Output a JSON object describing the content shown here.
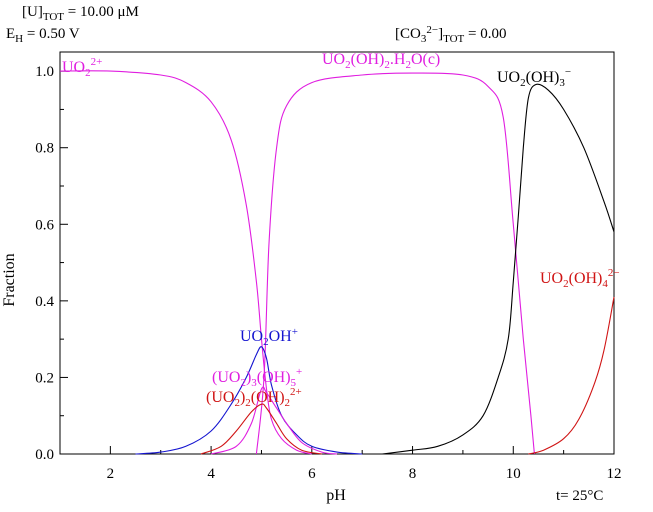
{
  "header": {
    "u_tot": "[U]TOT = 10.00 μM",
    "eh": "EH = 0.50 V",
    "co3_tot": "[CO32−]TOT = 0.00"
  },
  "footer": {
    "temperature": "t= 25°C"
  },
  "chart_data": {
    "type": "line",
    "title": "",
    "xlabel": "pH",
    "ylabel": "Fraction",
    "xlim": [
      1,
      12
    ],
    "ylim": [
      0,
      1.05
    ],
    "x_ticks": [
      2,
      4,
      6,
      8,
      10,
      12
    ],
    "y_ticks": [
      0.0,
      0.2,
      0.4,
      0.6,
      0.8,
      1.0
    ],
    "x_tick_labels": [
      "2",
      "4",
      "6",
      "8",
      "10",
      "12"
    ],
    "y_tick_labels": [
      "0.0",
      "0.2",
      "0.4",
      "0.6",
      "0.8",
      "1.0"
    ],
    "grid": false,
    "series": [
      {
        "name": "UO2 2+",
        "color": "#e01ee0",
        "points": [
          [
            1.0,
            1.0
          ],
          [
            2.0,
            1.0
          ],
          [
            3.0,
            0.99
          ],
          [
            3.5,
            0.97
          ],
          [
            4.0,
            0.92
          ],
          [
            4.4,
            0.82
          ],
          [
            4.7,
            0.65
          ],
          [
            4.9,
            0.45
          ],
          [
            5.0,
            0.3
          ],
          [
            5.1,
            0.17
          ],
          [
            5.2,
            0.09
          ],
          [
            5.4,
            0.04
          ],
          [
            5.7,
            0.01
          ],
          [
            6.0,
            0.0
          ]
        ]
      },
      {
        "name": "UO2(OH)2.H2O(c)",
        "color": "#e01ee0",
        "points": [
          [
            4.9,
            0.0
          ],
          [
            5.05,
            0.2
          ],
          [
            5.15,
            0.55
          ],
          [
            5.3,
            0.8
          ],
          [
            5.5,
            0.91
          ],
          [
            6.0,
            0.97
          ],
          [
            7.0,
            0.99
          ],
          [
            8.0,
            0.995
          ],
          [
            9.0,
            0.99
          ],
          [
            9.5,
            0.96
          ],
          [
            9.8,
            0.88
          ],
          [
            10.0,
            0.6
          ],
          [
            10.2,
            0.3
          ],
          [
            10.35,
            0.1
          ],
          [
            10.42,
            0.0
          ]
        ]
      },
      {
        "name": "UO2(OH)3−",
        "color": "#000000",
        "points": [
          [
            7.4,
            0.0
          ],
          [
            8.0,
            0.01
          ],
          [
            8.5,
            0.02
          ],
          [
            9.0,
            0.05
          ],
          [
            9.4,
            0.1
          ],
          [
            9.7,
            0.2
          ],
          [
            9.9,
            0.3
          ],
          [
            10.0,
            0.45
          ],
          [
            10.1,
            0.62
          ],
          [
            10.2,
            0.8
          ],
          [
            10.3,
            0.93
          ],
          [
            10.45,
            0.965
          ],
          [
            10.7,
            0.95
          ],
          [
            11.0,
            0.9
          ],
          [
            11.4,
            0.8
          ],
          [
            11.8,
            0.66
          ],
          [
            12.0,
            0.58
          ]
        ]
      },
      {
        "name": "UO2(OH)42−",
        "color": "#d01414",
        "points": [
          [
            10.3,
            0.0
          ],
          [
            10.6,
            0.01
          ],
          [
            11.0,
            0.04
          ],
          [
            11.3,
            0.09
          ],
          [
            11.6,
            0.18
          ],
          [
            11.8,
            0.27
          ],
          [
            12.0,
            0.41
          ]
        ]
      },
      {
        "name": "UO2OH+",
        "color": "#1414d0",
        "points": [
          [
            2.5,
            0.0
          ],
          [
            3.0,
            0.005
          ],
          [
            3.5,
            0.02
          ],
          [
            4.0,
            0.06
          ],
          [
            4.4,
            0.13
          ],
          [
            4.7,
            0.2
          ],
          [
            4.9,
            0.26
          ],
          [
            5.0,
            0.28
          ],
          [
            5.1,
            0.25
          ],
          [
            5.2,
            0.18
          ],
          [
            5.4,
            0.1
          ],
          [
            5.7,
            0.05
          ],
          [
            6.0,
            0.02
          ],
          [
            6.5,
            0.005
          ],
          [
            7.0,
            0.0
          ]
        ]
      },
      {
        "name": "(UO2)3(OH)5+",
        "color": "#e01ee0",
        "points": [
          [
            4.0,
            0.0
          ],
          [
            4.5,
            0.02
          ],
          [
            4.8,
            0.08
          ],
          [
            5.0,
            0.17
          ],
          [
            5.1,
            0.16
          ],
          [
            5.3,
            0.12
          ],
          [
            5.5,
            0.08
          ],
          [
            5.8,
            0.03
          ],
          [
            6.2,
            0.005
          ],
          [
            6.5,
            0.0
          ]
        ]
      },
      {
        "name": "(UO2)2(OH)22+",
        "color": "#d01414",
        "points": [
          [
            3.8,
            0.0
          ],
          [
            4.2,
            0.02
          ],
          [
            4.5,
            0.06
          ],
          [
            4.8,
            0.11
          ],
          [
            5.0,
            0.13
          ],
          [
            5.1,
            0.12
          ],
          [
            5.3,
            0.08
          ],
          [
            5.5,
            0.04
          ],
          [
            5.8,
            0.01
          ],
          [
            6.2,
            0.0
          ]
        ]
      }
    ]
  }
}
